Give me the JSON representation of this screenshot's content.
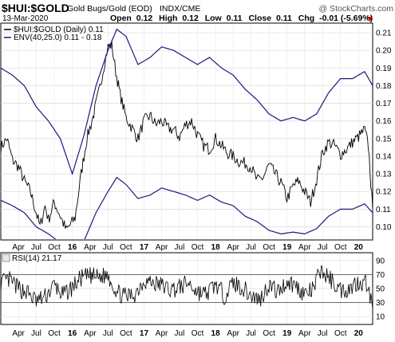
{
  "header": {
    "symbol": "$HUI:$GOLD",
    "name": "Gold Bugs/Gold (EOD)",
    "exchange": "INDX/CME",
    "watermark": "@ StockCharts.com",
    "date": "13-Mar-2020",
    "open_label": "Open",
    "open": "0.12",
    "high_label": "High",
    "high": "0.12",
    "low_label": "Low",
    "low": "0.11",
    "close_label": "Close",
    "close": "0.11",
    "chg_label": "Chg",
    "chg": "-0.01 (-5.69%)",
    "down_color": "#cc0000"
  },
  "legend": [
    {
      "text": "$HUI:$GOLD (Daily) 0.11",
      "color": "#000000"
    },
    {
      "text": "ENV(40,25.0) 0.11 - 0.18",
      "color": "#1a1a80"
    }
  ],
  "rsi_label": "RSI(14) 21.17",
  "x_tick_labels": [
    "Apr",
    "Jul",
    "Oct",
    "16",
    "Apr",
    "Jul",
    "Oct",
    "17",
    "Apr",
    "Jul",
    "Oct",
    "18",
    "Apr",
    "Jul",
    "Oct",
    "19",
    "Apr",
    "Jul",
    "Oct",
    "20"
  ],
  "chart_data": [
    {
      "type": "line",
      "x_range": [
        "2015-01-01",
        "2020-03-13"
      ],
      "y_ticks": [
        "0.10",
        "0.11",
        "0.12",
        "0.13",
        "0.14",
        "0.15",
        "0.16",
        "0.17",
        "0.18",
        "0.19",
        "0.20",
        "0.21"
      ],
      "ylim": [
        0.093,
        0.215
      ],
      "grid": true,
      "legend_position": "top-left",
      "series": [
        {
          "name": "$HUI:$GOLD (Daily) 0.11",
          "color": "#000000",
          "x": [
            "2015-01-01",
            "2015-02-01",
            "2015-03-01",
            "2015-04-01",
            "2015-05-01",
            "2015-06-01",
            "2015-07-01",
            "2015-07-20",
            "2015-08-15",
            "2015-09-01",
            "2015-10-01",
            "2015-11-01",
            "2015-12-01",
            "2016-01-15",
            "2016-02-15",
            "2016-03-15",
            "2016-04-15",
            "2016-05-15",
            "2016-06-15",
            "2016-07-01",
            "2016-07-20",
            "2016-08-10",
            "2016-09-01",
            "2016-10-01",
            "2016-11-01",
            "2016-12-01",
            "2017-01-01",
            "2017-02-01",
            "2017-03-01",
            "2017-04-01",
            "2017-05-01",
            "2017-06-01",
            "2017-07-01",
            "2017-08-01",
            "2017-09-01",
            "2017-10-01",
            "2017-11-01",
            "2017-12-01",
            "2018-01-01",
            "2018-02-01",
            "2018-03-01",
            "2018-04-01",
            "2018-05-01",
            "2018-06-01",
            "2018-07-01",
            "2018-08-01",
            "2018-09-01",
            "2018-10-01",
            "2018-11-01",
            "2018-12-01",
            "2019-01-01",
            "2019-02-01",
            "2019-03-01",
            "2019-04-01",
            "2019-05-01",
            "2019-06-01",
            "2019-07-01",
            "2019-08-01",
            "2019-09-01",
            "2019-10-01",
            "2019-11-01",
            "2019-12-01",
            "2020-01-01",
            "2020-02-01",
            "2020-02-20",
            "2020-03-13"
          ],
          "values": [
            0.145,
            0.15,
            0.138,
            0.134,
            0.126,
            0.12,
            0.108,
            0.1,
            0.112,
            0.104,
            0.114,
            0.106,
            0.098,
            0.105,
            0.13,
            0.15,
            0.162,
            0.176,
            0.194,
            0.202,
            0.203,
            0.188,
            0.175,
            0.162,
            0.156,
            0.15,
            0.16,
            0.163,
            0.158,
            0.16,
            0.156,
            0.155,
            0.151,
            0.158,
            0.16,
            0.152,
            0.146,
            0.144,
            0.15,
            0.146,
            0.142,
            0.14,
            0.137,
            0.136,
            0.134,
            0.126,
            0.128,
            0.135,
            0.13,
            0.125,
            0.116,
            0.123,
            0.126,
            0.12,
            0.114,
            0.127,
            0.142,
            0.148,
            0.146,
            0.141,
            0.144,
            0.148,
            0.151,
            0.155,
            0.146,
            0.11
          ]
        },
        {
          "name": "ENV(40,25.0) upper",
          "color": "#1a1a80",
          "x": [
            "2015-01-01",
            "2015-03-01",
            "2015-05-01",
            "2015-07-01",
            "2015-09-01",
            "2015-11-01",
            "2016-01-01",
            "2016-03-01",
            "2016-05-01",
            "2016-07-01",
            "2016-08-15",
            "2016-10-01",
            "2016-12-01",
            "2017-02-01",
            "2017-04-01",
            "2017-06-01",
            "2017-08-01",
            "2017-10-01",
            "2017-12-01",
            "2018-02-01",
            "2018-04-01",
            "2018-06-01",
            "2018-08-01",
            "2018-10-01",
            "2018-12-01",
            "2019-02-01",
            "2019-04-01",
            "2019-06-01",
            "2019-08-01",
            "2019-10-01",
            "2019-12-01",
            "2020-02-01",
            "2020-03-13"
          ],
          "values": [
            0.19,
            0.186,
            0.18,
            0.168,
            0.16,
            0.15,
            0.13,
            0.152,
            0.18,
            0.2,
            0.212,
            0.208,
            0.192,
            0.196,
            0.202,
            0.2,
            0.196,
            0.192,
            0.196,
            0.19,
            0.186,
            0.178,
            0.172,
            0.164,
            0.16,
            0.162,
            0.16,
            0.164,
            0.176,
            0.184,
            0.184,
            0.188,
            0.18
          ]
        },
        {
          "name": "ENV(40,25.0) lower",
          "color": "#1a1a80",
          "x": [
            "2015-01-01",
            "2015-03-01",
            "2015-05-01",
            "2015-07-01",
            "2015-09-01",
            "2015-11-01",
            "2016-01-01",
            "2016-03-01",
            "2016-05-01",
            "2016-07-01",
            "2016-08-15",
            "2016-10-01",
            "2016-12-01",
            "2017-02-01",
            "2017-04-01",
            "2017-06-01",
            "2017-08-01",
            "2017-10-01",
            "2017-12-01",
            "2018-02-01",
            "2018-04-01",
            "2018-06-01",
            "2018-08-01",
            "2018-10-01",
            "2018-12-01",
            "2019-02-01",
            "2019-04-01",
            "2019-06-01",
            "2019-08-01",
            "2019-10-01",
            "2019-12-01",
            "2020-02-01",
            "2020-03-13"
          ],
          "values": [
            0.115,
            0.112,
            0.108,
            0.1,
            0.096,
            0.091,
            0.078,
            0.092,
            0.108,
            0.12,
            0.128,
            0.124,
            0.116,
            0.118,
            0.122,
            0.12,
            0.118,
            0.115,
            0.118,
            0.114,
            0.112,
            0.106,
            0.103,
            0.098,
            0.096,
            0.097,
            0.096,
            0.099,
            0.106,
            0.11,
            0.11,
            0.113,
            0.108
          ]
        }
      ]
    },
    {
      "type": "line",
      "x_range": [
        "2015-01-01",
        "2020-03-13"
      ],
      "y_ticks": [
        "10",
        "30",
        "50",
        "70",
        "90"
      ],
      "ylim": [
        0,
        100
      ],
      "reference_lines": [
        30,
        70
      ],
      "grid": true,
      "series": [
        {
          "name": "RSI(14) 21.17",
          "color": "#000000",
          "x": [
            "2015-01-01",
            "2015-02-15",
            "2015-04-01",
            "2015-05-15",
            "2015-07-01",
            "2015-08-15",
            "2015-10-01",
            "2015-11-15",
            "2016-01-01",
            "2016-02-15",
            "2016-04-01",
            "2016-05-15",
            "2016-07-01",
            "2016-08-15",
            "2016-10-01",
            "2016-11-15",
            "2017-01-01",
            "2017-02-15",
            "2017-04-01",
            "2017-05-15",
            "2017-07-01",
            "2017-08-15",
            "2017-10-01",
            "2017-11-15",
            "2018-01-01",
            "2018-02-15",
            "2018-04-01",
            "2018-05-15",
            "2018-07-01",
            "2018-08-15",
            "2018-10-01",
            "2018-11-15",
            "2019-01-01",
            "2019-02-15",
            "2019-04-01",
            "2019-05-15",
            "2019-06-20",
            "2019-08-15",
            "2019-10-01",
            "2019-11-15",
            "2020-01-01",
            "2020-02-15",
            "2020-03-13"
          ],
          "values": [
            58,
            62,
            50,
            45,
            32,
            38,
            55,
            40,
            52,
            65,
            68,
            66,
            70,
            45,
            38,
            42,
            62,
            58,
            55,
            48,
            52,
            58,
            45,
            42,
            56,
            40,
            58,
            52,
            40,
            34,
            56,
            45,
            60,
            54,
            42,
            48,
            76,
            62,
            48,
            50,
            60,
            58,
            21
          ]
        }
      ]
    }
  ]
}
